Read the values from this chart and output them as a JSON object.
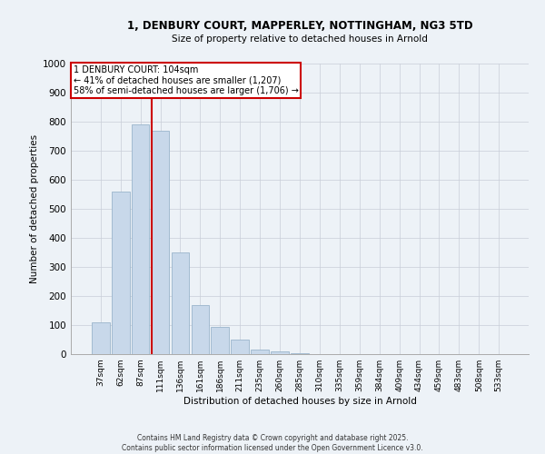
{
  "title_line1": "1, DENBURY COURT, MAPPERLEY, NOTTINGHAM, NG3 5TD",
  "title_line2": "Size of property relative to detached houses in Arnold",
  "xlabel": "Distribution of detached houses by size in Arnold",
  "ylabel": "Number of detached properties",
  "bar_color": "#c8d8ea",
  "bar_edge_color": "#9ab5cc",
  "vline_color": "#cc0000",
  "categories": [
    "37sqm",
    "62sqm",
    "87sqm",
    "111sqm",
    "136sqm",
    "161sqm",
    "186sqm",
    "211sqm",
    "235sqm",
    "260sqm",
    "285sqm",
    "310sqm",
    "335sqm",
    "359sqm",
    "384sqm",
    "409sqm",
    "434sqm",
    "459sqm",
    "483sqm",
    "508sqm",
    "533sqm"
  ],
  "values": [
    110,
    560,
    790,
    770,
    350,
    170,
    95,
    50,
    15,
    8,
    3,
    1,
    0,
    0,
    0,
    0,
    1,
    0,
    0,
    0,
    0
  ],
  "ylim": [
    0,
    1000
  ],
  "yticks": [
    0,
    100,
    200,
    300,
    400,
    500,
    600,
    700,
    800,
    900,
    1000
  ],
  "annotation_text": "1 DENBURY COURT: 104sqm\n← 41% of detached houses are smaller (1,207)\n58% of semi-detached houses are larger (1,706) →",
  "footnote1": "Contains HM Land Registry data © Crown copyright and database right 2025.",
  "footnote2": "Contains public sector information licensed under the Open Government Licence v3.0.",
  "background_color": "#edf2f7",
  "grid_color": "#c8cdd8",
  "vline_bin_index": 3
}
